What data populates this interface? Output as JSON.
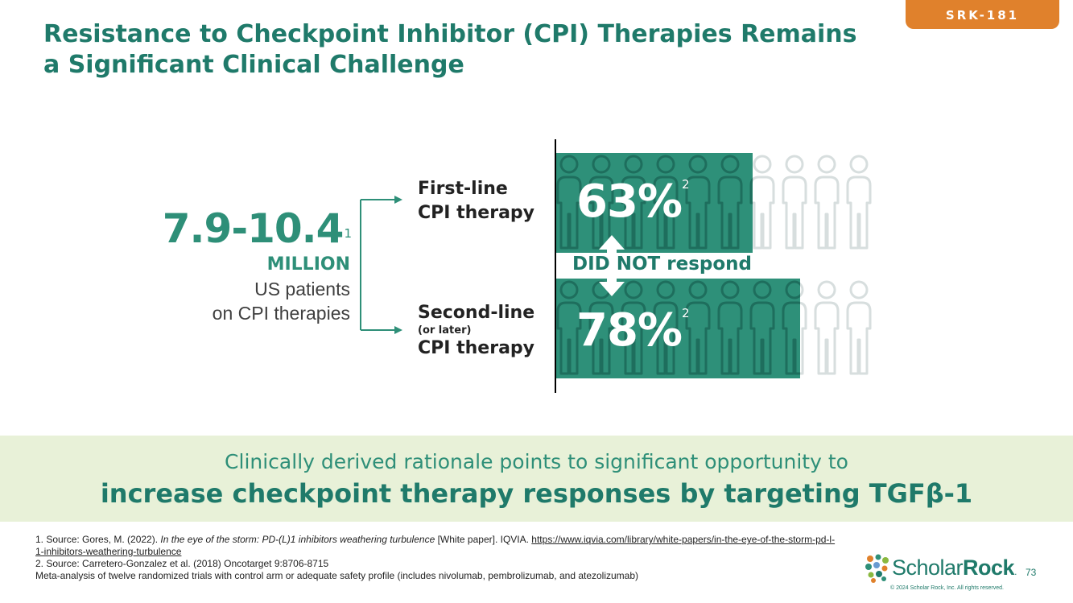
{
  "tag": "SRK-181",
  "title": {
    "line1": "Resistance to Checkpoint Inhibitor (CPI) Therapies Remains",
    "line2": "a Significant Clinical Challenge"
  },
  "left": {
    "number": "7.9-10.4",
    "number_ref": "1",
    "unit": "MILLION",
    "desc1": "US patients",
    "desc2": "on CPI therapies"
  },
  "first_line": {
    "line1": "First-line",
    "line2": "CPI therapy"
  },
  "second_line": {
    "line1": "Second-line",
    "small": "(or later)",
    "line2": "CPI therapy"
  },
  "chart_data": {
    "type": "bar",
    "categories": [
      "First-line CPI therapy",
      "Second-line (or later) CPI therapy"
    ],
    "values": [
      63,
      78
    ],
    "value_labels": [
      "63%",
      "78%"
    ],
    "value_refs": [
      "2",
      "2"
    ],
    "unit": "%",
    "annotation": "DID NOT respond",
    "ylim": [
      0,
      100
    ],
    "colors": {
      "fill": "#2e9079",
      "outline": "#d7dede"
    }
  },
  "band": {
    "line1": "Clinically derived rationale points to significant opportunity to",
    "line2": "increase checkpoint therapy responses by targeting TGFβ-1"
  },
  "refs": {
    "r1_prefix": "1. Source: ",
    "r1_author": "Gores, M. (2022). ",
    "r1_title": "In the eye of the storm: PD-(L)1 inhibitors weathering turbulence",
    "r1_type": " [White paper].  IQVIA. ",
    "r1_link": "https://www.iqvia.com/library/white-papers/in-the-eye-of-the-storm-pd-l-1-inhibitors-weathering-turbulence",
    "r2": "2. Source: Carretero-Gonzalez et al. (2018) Oncotarget 9:8706-8715",
    "r3": "Meta-analysis of twelve randomized trials with control arm or adequate safety profile (includes nivolumab, pembrolizumab, and atezolizumab)"
  },
  "logo": {
    "part1": "Scholar",
    "part2": "Rock",
    "tm": "."
  },
  "page_number": "73",
  "copyright": "© 2024 Scholar Rock, Inc. All rights reserved."
}
